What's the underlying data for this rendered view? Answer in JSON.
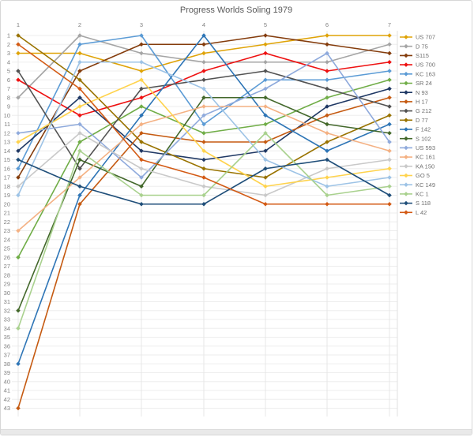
{
  "title": "Progress Worlds Soling 1979",
  "chart_data": {
    "type": "line",
    "subtype": "bump-chart-race-positions",
    "title": "Progress Worlds Soling 1979",
    "xlabel": "",
    "ylabel": "",
    "x_ticks": [
      "1",
      "2",
      "3",
      "4",
      "5",
      "6",
      "7"
    ],
    "x_axis_position": "top",
    "y_min": 1,
    "y_max": 43,
    "y_tick_step": 1,
    "y_inverted": true,
    "grid": true,
    "legend_position": "right",
    "grid_color": "#ededed",
    "axis_text_color": "#808080",
    "legend_text_color": "#6f6f6f",
    "title_color": "#595959",
    "series": [
      {
        "name": "US 707",
        "color": "#dfa307",
        "positions": [
          3,
          3,
          5,
          3,
          2,
          1,
          1
        ]
      },
      {
        "name": "D 75",
        "color": "#a5a5a5",
        "positions": [
          8,
          1,
          3,
          4,
          4,
          4,
          2
        ]
      },
      {
        "name": "S115",
        "color": "#843c0c",
        "positions": [
          17,
          5,
          2,
          2,
          1,
          2,
          3
        ]
      },
      {
        "name": "US 700",
        "color": "#ee1111",
        "positions": [
          6,
          10,
          8,
          5,
          3,
          5,
          4
        ]
      },
      {
        "name": "KC 163",
        "color": "#5b9bd5",
        "positions": [
          16,
          2,
          1,
          11,
          6,
          6,
          5
        ]
      },
      {
        "name": "SR 24",
        "color": "#70ad47",
        "positions": [
          26,
          13,
          9,
          12,
          11,
          8,
          6
        ]
      },
      {
        "name": "N 93",
        "color": "#1f3864",
        "positions": [
          14,
          8,
          14,
          15,
          14,
          9,
          7
        ]
      },
      {
        "name": "H 17",
        "color": "#c55a11",
        "positions": [
          43,
          20,
          12,
          13,
          13,
          10,
          8
        ]
      },
      {
        "name": "G 212",
        "color": "#525252",
        "positions": [
          5,
          16,
          7,
          6,
          5,
          7,
          9
        ]
      },
      {
        "name": "D 77",
        "color": "#997300",
        "positions": [
          1,
          6,
          13,
          16,
          17,
          13,
          10
        ]
      },
      {
        "name": "F 142",
        "color": "#2e75b6",
        "positions": [
          38,
          19,
          10,
          1,
          10,
          14,
          11
        ]
      },
      {
        "name": "S 102",
        "color": "#43682b",
        "positions": [
          32,
          15,
          18,
          8,
          8,
          11,
          12
        ]
      },
      {
        "name": "US 593",
        "color": "#8faadc",
        "positions": [
          12,
          11,
          17,
          10,
          7,
          3,
          13
        ]
      },
      {
        "name": "KC 161",
        "color": "#f4b183",
        "positions": [
          23,
          17,
          11,
          9,
          9,
          12,
          14
        ]
      },
      {
        "name": "KA 150",
        "color": "#c9c9c9",
        "positions": [
          18,
          12,
          16,
          18,
          19,
          16,
          15
        ]
      },
      {
        "name": "GO 5",
        "color": "#ffd34d",
        "positions": [
          13,
          9,
          6,
          14,
          18,
          17,
          16
        ]
      },
      {
        "name": "KC 149",
        "color": "#9dc3e6",
        "positions": [
          19,
          4,
          4,
          7,
          15,
          18,
          17
        ]
      },
      {
        "name": "KC 1",
        "color": "#a9d18e",
        "positions": [
          34,
          14,
          19,
          19,
          12,
          19,
          18
        ]
      },
      {
        "name": "S 118",
        "color": "#1f4e79",
        "positions": [
          15,
          18,
          20,
          20,
          16,
          15,
          19
        ]
      },
      {
        "name": "L 42",
        "color": "#d35a14",
        "positions": [
          2,
          7,
          15,
          17,
          20,
          20,
          20
        ]
      }
    ]
  }
}
